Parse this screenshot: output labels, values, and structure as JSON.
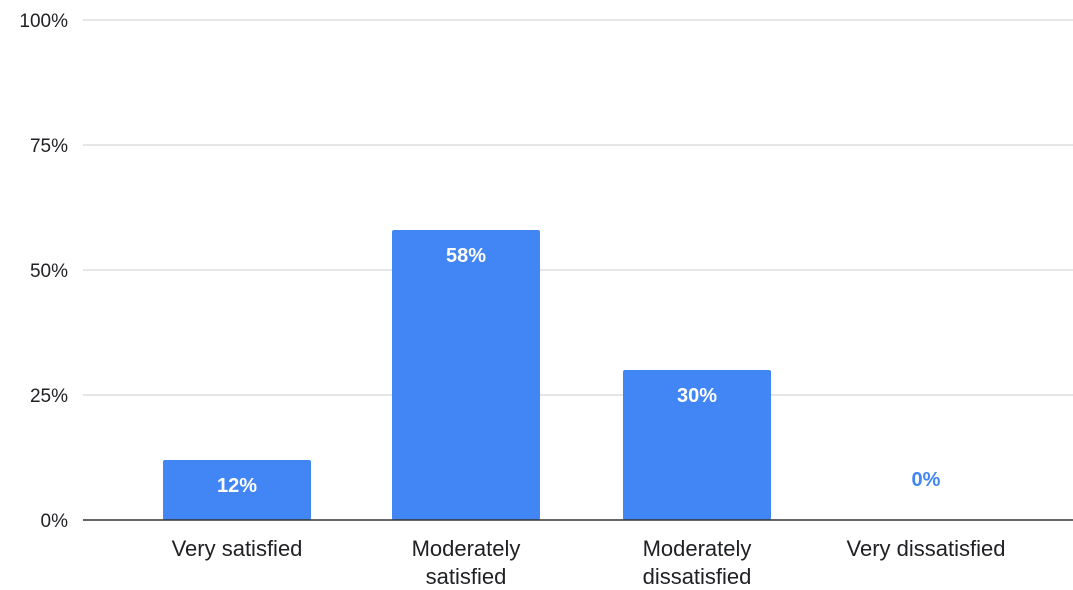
{
  "chart_data": {
    "type": "bar",
    "categories": [
      [
        "Very satisfied"
      ],
      [
        "Moderately",
        "satisfied"
      ],
      [
        "Moderately",
        "dissatisfied"
      ],
      [
        "Very dissatisfied"
      ]
    ],
    "values": [
      12,
      58,
      30,
      0
    ],
    "data_labels": [
      "12%",
      "58%",
      "30%",
      "0%"
    ],
    "yticks": [
      {
        "value": 0,
        "label": "0%"
      },
      {
        "value": 25,
        "label": "25%"
      },
      {
        "value": 50,
        "label": "50%"
      },
      {
        "value": 75,
        "label": "75%"
      },
      {
        "value": 100,
        "label": "100%"
      }
    ],
    "ylim": [
      0,
      100
    ],
    "grid": true,
    "bar_color": "#4285f4",
    "grid_color": "#cccccc",
    "axis_color": "#333333",
    "title": "",
    "xlabel": "",
    "ylabel": ""
  }
}
